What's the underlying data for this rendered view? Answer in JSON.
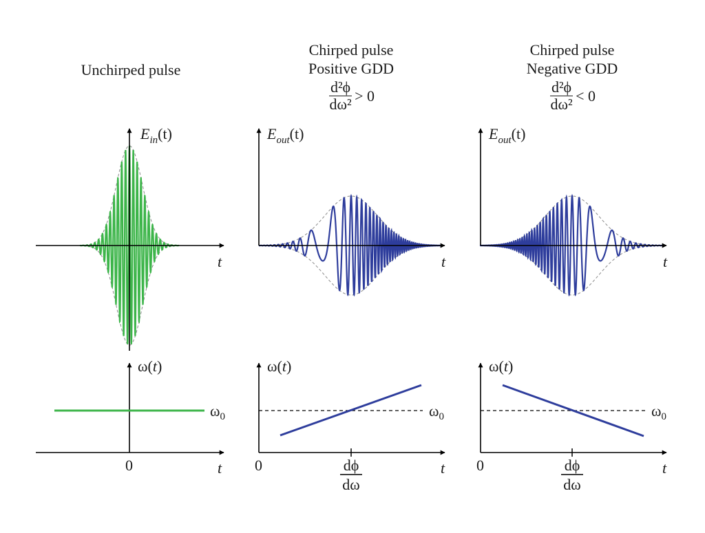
{
  "colors": {
    "unchirped": "#3db54a",
    "chirped": "#2e3d9c",
    "axis": "#000000",
    "envelope": "#888888"
  },
  "panels": [
    {
      "title_lines": [
        "Unchirped pulse"
      ],
      "fraction": null,
      "condition": "",
      "top_label": {
        "symbol": "E",
        "sub": "in",
        "arg": "(t)"
      },
      "top_xlabel": "t",
      "bottom_ylabel": {
        "symbol": "ω",
        "arg": "(t)"
      },
      "bottom_line_label": {
        "symbol": "ω",
        "sub": "0"
      },
      "bottom_xlabel": "t",
      "bottom_origin": "0",
      "bottom_tick": null
    },
    {
      "title_lines": [
        "Chirped pulse",
        "Positive GDD"
      ],
      "fraction": {
        "num": "d²ϕ",
        "den": "dω²"
      },
      "condition": "> 0",
      "top_label": {
        "symbol": "E",
        "sub": "out",
        "arg": "(t)"
      },
      "top_xlabel": "t",
      "bottom_ylabel": {
        "symbol": "ω",
        "arg": "(t)"
      },
      "bottom_line_label": {
        "symbol": "ω",
        "sub": "0"
      },
      "bottom_xlabel": "t",
      "bottom_origin": "0",
      "bottom_tick": {
        "num": "dϕ",
        "den": "dω"
      }
    },
    {
      "title_lines": [
        "Chirped pulse",
        "Negative GDD"
      ],
      "fraction": {
        "num": "d²ϕ",
        "den": "dω²"
      },
      "condition": "< 0",
      "top_label": {
        "symbol": "E",
        "sub": "out",
        "arg": "(t)"
      },
      "top_xlabel": "t",
      "bottom_ylabel": {
        "symbol": "ω",
        "arg": "(t)"
      },
      "bottom_line_label": {
        "symbol": "ω",
        "sub": "0"
      },
      "bottom_xlabel": "t",
      "bottom_origin": "0",
      "bottom_tick": {
        "num": "dϕ",
        "den": "dω"
      }
    }
  ]
}
